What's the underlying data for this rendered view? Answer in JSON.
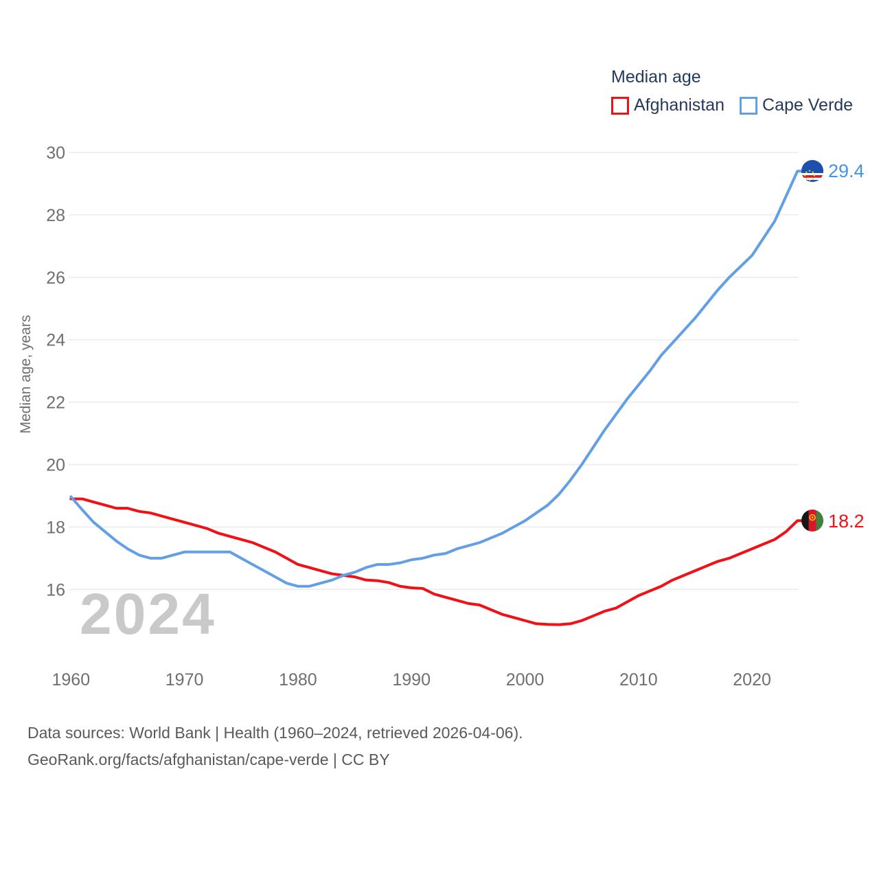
{
  "watermark": "2024",
  "legend": {
    "title": "Median age",
    "items": [
      {
        "label": "Afghanistan"
      },
      {
        "label": "Cape Verde"
      }
    ]
  },
  "footer": {
    "line1": "Data sources: World Bank | Health (1960–2024, retrieved 2026-04-06).",
    "line2": "GeoRank.org/facts/afghanistan/cape-verde | CC BY"
  },
  "chart_data": {
    "type": "line",
    "title": "Median age",
    "ylabel": "Median age, years",
    "xlabel": "",
    "ylim": [
      14.5,
      30
    ],
    "xlim": [
      1960,
      2024
    ],
    "grid": "horizontal",
    "legend_position": "top-right",
    "x_ticks": [
      1960,
      1970,
      1980,
      1990,
      2000,
      2010,
      2020
    ],
    "y_ticks": [
      16,
      18,
      20,
      22,
      24,
      26,
      28,
      30
    ],
    "x": [
      1960,
      1961,
      1962,
      1963,
      1964,
      1965,
      1966,
      1967,
      1968,
      1969,
      1970,
      1971,
      1972,
      1973,
      1974,
      1975,
      1976,
      1977,
      1978,
      1979,
      1980,
      1981,
      1982,
      1983,
      1984,
      1985,
      1986,
      1987,
      1988,
      1989,
      1990,
      1991,
      1992,
      1993,
      1994,
      1995,
      1996,
      1997,
      1998,
      1999,
      2000,
      2001,
      2002,
      2003,
      2004,
      2005,
      2006,
      2007,
      2008,
      2009,
      2010,
      2011,
      2012,
      2013,
      2014,
      2015,
      2016,
      2017,
      2018,
      2019,
      2020,
      2021,
      2022,
      2023,
      2024
    ],
    "series": [
      {
        "name": "Afghanistan",
        "color": "#f01015",
        "end_label": "18.2",
        "end_label_color": "#f01015",
        "values": [
          18.9,
          18.9,
          18.8,
          18.7,
          18.6,
          18.6,
          18.5,
          18.45,
          18.35,
          18.25,
          18.15,
          18.05,
          17.95,
          17.8,
          17.7,
          17.6,
          17.5,
          17.35,
          17.2,
          17.0,
          16.8,
          16.7,
          16.6,
          16.5,
          16.45,
          16.4,
          16.3,
          16.28,
          16.22,
          16.1,
          16.05,
          16.03,
          15.85,
          15.75,
          15.65,
          15.55,
          15.5,
          15.35,
          15.2,
          15.1,
          15.0,
          14.9,
          14.88,
          14.87,
          14.9,
          15.0,
          15.15,
          15.3,
          15.4,
          15.6,
          15.8,
          15.95,
          16.1,
          16.3,
          16.45,
          16.6,
          16.75,
          16.9,
          17.0,
          17.15,
          17.3,
          17.45,
          17.6,
          17.85,
          18.2
        ]
      },
      {
        "name": "Cape Verde",
        "color": "#639fe5",
        "end_label": "29.4",
        "end_label_color": "#4394e9",
        "values": [
          18.97,
          18.55,
          18.15,
          17.85,
          17.55,
          17.3,
          17.1,
          17.0,
          17.0,
          17.1,
          17.2,
          17.2,
          17.2,
          17.2,
          17.2,
          17.0,
          16.8,
          16.6,
          16.4,
          16.2,
          16.1,
          16.1,
          16.2,
          16.3,
          16.45,
          16.55,
          16.7,
          16.8,
          16.8,
          16.85,
          16.95,
          17.0,
          17.1,
          17.15,
          17.3,
          17.4,
          17.5,
          17.65,
          17.8,
          18.0,
          18.2,
          18.45,
          18.7,
          19.05,
          19.5,
          20.0,
          20.55,
          21.1,
          21.6,
          22.1,
          22.55,
          23.0,
          23.5,
          23.9,
          24.3,
          24.7,
          25.15,
          25.6,
          26.0,
          26.35,
          26.7,
          27.25,
          27.8,
          28.6,
          29.4
        ]
      }
    ]
  }
}
